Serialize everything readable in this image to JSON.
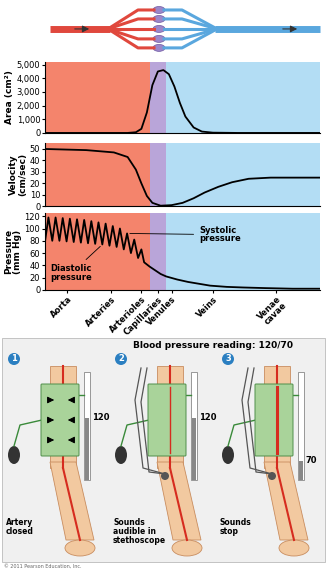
{
  "vessel_regions": [
    {
      "from": 0,
      "to": 38,
      "color": "#f4846c"
    },
    {
      "from": 38,
      "to": 44,
      "color": "#b9a5d9"
    },
    {
      "from": 44,
      "to": 100,
      "color": "#b3ddf4"
    }
  ],
  "chart_data": [
    {
      "type": "line",
      "ylabel": "Area (cm²)",
      "color": "#000000",
      "x": [
        0,
        30,
        33,
        35,
        37,
        39,
        41,
        43,
        45,
        47,
        49,
        51,
        54,
        57,
        61,
        70,
        100
      ],
      "values": [
        0,
        0,
        50,
        300,
        1500,
        3500,
        4500,
        4600,
        4300,
        3400,
        2200,
        1200,
        400,
        100,
        20,
        0,
        0
      ],
      "xlim": [
        0,
        100
      ],
      "ylim": [
        0,
        5200
      ],
      "yticks": [
        0,
        {
          "value": 1000,
          "label": "1,000"
        },
        {
          "value": 2000,
          "label": "2,000"
        },
        {
          "value": 3000,
          "label": "3,000"
        },
        {
          "value": 4000,
          "label": "4,000"
        },
        {
          "value": 5000,
          "label": "5,000"
        }
      ],
      "tick_labels": "y"
    },
    {
      "type": "line",
      "ylabel": "Velocity\n(cm/sec)",
      "color": "#000000",
      "x": [
        0,
        15,
        25,
        30,
        33,
        35,
        37,
        39,
        42,
        46,
        50,
        54,
        58,
        63,
        68,
        74,
        82,
        100
      ],
      "values": [
        50,
        49,
        47,
        43,
        32,
        20,
        9,
        3,
        0.5,
        1,
        3,
        7,
        12,
        17,
        21,
        24,
        25,
        25
      ],
      "xlim": [
        0,
        100
      ],
      "ylim": [
        0,
        55
      ],
      "yticks": [
        0,
        10,
        20,
        30,
        40,
        50
      ],
      "tick_labels": "y"
    },
    {
      "type": "line",
      "ylabel": "Pressure\n(mm Hg)",
      "color": "#000000",
      "x": [
        0,
        1.2,
        2.6,
        3.8,
        5.2,
        6.4,
        7.8,
        9.0,
        10.4,
        11.6,
        13.0,
        14.2,
        15.6,
        16.8,
        18.2,
        19.4,
        20.8,
        22.0,
        23.4,
        24.6,
        26.0,
        27.2,
        28.6,
        29.8,
        31.2,
        32.4,
        33.8,
        35.0,
        36.0,
        38,
        40,
        42,
        44,
        48,
        52,
        56,
        60,
        66,
        72,
        80,
        90,
        100
      ],
      "values": [
        80,
        118,
        80,
        118,
        80,
        117,
        79,
        116,
        78,
        115,
        77,
        114,
        76,
        112,
        75,
        110,
        74,
        108,
        72,
        104,
        70,
        100,
        66,
        92,
        60,
        82,
        52,
        66,
        45,
        38,
        32,
        26,
        22,
        17,
        13,
        10,
        7,
        5,
        4,
        3,
        2,
        2
      ],
      "xlim": [
        0,
        100
      ],
      "xticks": [
        {
          "value": 8,
          "label": "Aorta"
        },
        {
          "value": 24,
          "label": "Arteries"
        },
        {
          "value": 35,
          "label": "Arterioles"
        },
        {
          "value": 41,
          "label": "Capillaries"
        },
        {
          "value": 46,
          "label": "Venules"
        },
        {
          "value": 61,
          "label": "Veins"
        },
        {
          "value": 84,
          "label": "Venae\ncavae"
        }
      ],
      "ylim": [
        0,
        125
      ],
      "yticks": [
        0,
        20,
        40,
        60,
        80,
        100,
        120
      ],
      "annotations": [
        {
          "text": "Systolic\npressure",
          "x": 29.8,
          "y": 92
        },
        {
          "text": "Diastolic\npressure",
          "x": 20.8,
          "y": 74
        }
      ]
    }
  ],
  "diagram": {
    "title": "Blood pressure reading: 120/70",
    "steps": [
      {
        "number": 1,
        "reading": 120,
        "label": "Artery\nclosed"
      },
      {
        "number": 2,
        "reading": 120,
        "label": "Sounds\naudible in\nstethoscope"
      },
      {
        "number": 3,
        "reading": 70,
        "label": "Sounds\nstop"
      }
    ],
    "credit": "© 2011 Pearson Education, Inc."
  }
}
